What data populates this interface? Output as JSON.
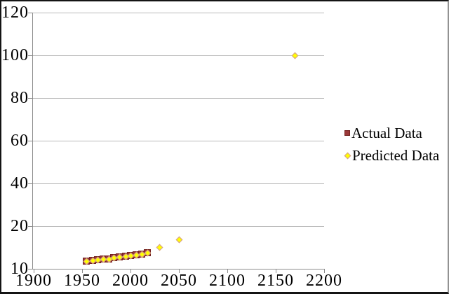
{
  "chart_data": {
    "type": "scatter",
    "title": "",
    "xlim": [
      1900,
      2200
    ],
    "ylim": [
      0,
      120
    ],
    "x_ticks": [
      1900,
      1950,
      2000,
      2050,
      2100,
      2150,
      2200
    ],
    "y_tick_labels": [
      "120",
      "100",
      "80",
      "60",
      "40",
      "20",
      "10"
    ],
    "y_axis_note": "bottom tick at axis origin is labeled 10",
    "grid": "horizontal",
    "legend_position": "right-outside",
    "axis_color": "#8c8c8c",
    "gridline_color": "#b9b9b9",
    "series": [
      {
        "name": "Actual Data",
        "marker": "square",
        "fill": "#9a3839",
        "border": "#74211f",
        "points": [
          [
            1955,
            3.4
          ],
          [
            1961,
            3.7
          ],
          [
            1966,
            4.0
          ],
          [
            1972,
            4.3
          ],
          [
            1978,
            4.6
          ],
          [
            1983,
            5.0
          ],
          [
            1989,
            5.3
          ],
          [
            1995,
            5.6
          ],
          [
            2000,
            6.0
          ],
          [
            2006,
            6.3
          ],
          [
            2012,
            6.7
          ],
          [
            2018,
            7.5
          ]
        ]
      },
      {
        "name": "Predicted Data",
        "marker": "diamond",
        "fill": "#ffff00",
        "border": "#d49a96",
        "points": [
          [
            1955,
            3.4
          ],
          [
            1961,
            3.7
          ],
          [
            1966,
            4.0
          ],
          [
            1972,
            4.3
          ],
          [
            1978,
            4.6
          ],
          [
            1983,
            5.0
          ],
          [
            1989,
            5.3
          ],
          [
            1995,
            5.6
          ],
          [
            2000,
            6.0
          ],
          [
            2006,
            6.3
          ],
          [
            2012,
            6.7
          ],
          [
            2018,
            7.5
          ],
          [
            2030,
            10
          ],
          [
            2050,
            13.5
          ],
          [
            2170,
            100
          ]
        ]
      }
    ]
  },
  "legend": {
    "items": [
      {
        "label": "Actual Data"
      },
      {
        "label": "Predicted Data"
      }
    ]
  }
}
